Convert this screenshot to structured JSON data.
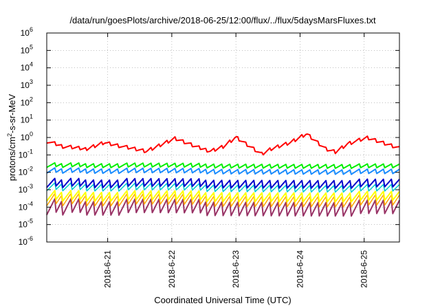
{
  "chart_data": {
    "type": "line",
    "title": "/data/run/goesPlots/archive/2018-06-25/12:00/flux/../flux/5daysMarsFluxes.txt",
    "xlabel": "Coordinated Universal Time (UTC)",
    "ylabel_base": "protons/cm",
    "ylabel_exp": "2",
    "ylabel_tail": "-s-sr-MeV",
    "y_scale": "log",
    "ylim_exponents": [
      -6,
      6
    ],
    "y_tick_exponents": [
      -6,
      -5,
      -4,
      -3,
      -2,
      -1,
      0,
      1,
      2,
      3,
      4,
      5,
      6
    ],
    "y_tick_base": "10",
    "x_domain_days": [
      0.0,
      5.5
    ],
    "x_ticks": [
      {
        "x": 0.95,
        "label": "2018-6-21"
      },
      {
        "x": 1.95,
        "label": "2018-6-22"
      },
      {
        "x": 2.95,
        "label": "2018-6-23"
      },
      {
        "x": 3.95,
        "label": "2018-6-24"
      },
      {
        "x": 4.95,
        "label": "2018-6-25"
      }
    ],
    "grid": true,
    "series": [
      {
        "color": "#ff0000",
        "period": 0.125,
        "low_ratio": 0.6,
        "thick": 2,
        "x": [
          0.0,
          0.25,
          0.6,
          0.9,
          1.2,
          1.55,
          1.7,
          2.0,
          2.35,
          2.55,
          2.75,
          2.95,
          3.35,
          3.5,
          3.8,
          4.05,
          4.35,
          4.5,
          4.7,
          5.0,
          5.5
        ],
        "y": [
          0.8,
          0.4,
          0.28,
          0.7,
          0.38,
          0.2,
          0.35,
          1.1,
          0.35,
          0.22,
          0.4,
          1.4,
          0.15,
          0.3,
          0.7,
          2.2,
          0.3,
          0.2,
          0.6,
          1.2,
          0.3
        ]
      },
      {
        "color": "#00ee00",
        "period": 0.125,
        "low_ratio": 0.55,
        "thick": 2,
        "x": [
          0.0,
          5.5
        ],
        "y": [
          0.035,
          0.03
        ]
      },
      {
        "color": "#1a8cff",
        "period": 0.125,
        "low_ratio": 0.5,
        "thick": 2,
        "x": [
          0.0,
          5.5
        ],
        "y": [
          0.018,
          0.015
        ]
      },
      {
        "color": "#0000cc",
        "period": 0.125,
        "low_ratio": 0.3,
        "thick": 2,
        "x": [
          0.0,
          5.5
        ],
        "y": [
          0.0045,
          0.004
        ]
      },
      {
        "color": "#00cccc",
        "period": 0.125,
        "low_ratio": 0.35,
        "thick": 1.5,
        "x": [
          0.0,
          5.5
        ],
        "y": [
          0.0025,
          0.002
        ]
      },
      {
        "color": "#ffff00",
        "period": 0.125,
        "low_ratio": 0.25,
        "thick": 2,
        "x": [
          0.0,
          5.5
        ],
        "y": [
          0.0009,
          0.0008
        ]
      },
      {
        "color": "#ffa500",
        "period": 0.125,
        "low_ratio": 0.2,
        "thick": 1.5,
        "x": [
          0.0,
          5.5
        ],
        "y": [
          0.0006,
          0.0005
        ]
      },
      {
        "color": "#993366",
        "period": 0.125,
        "low_ratio": 0.12,
        "thick": 2,
        "x": [
          0.0,
          5.5
        ],
        "y": [
          0.0003,
          0.00025
        ]
      }
    ]
  }
}
